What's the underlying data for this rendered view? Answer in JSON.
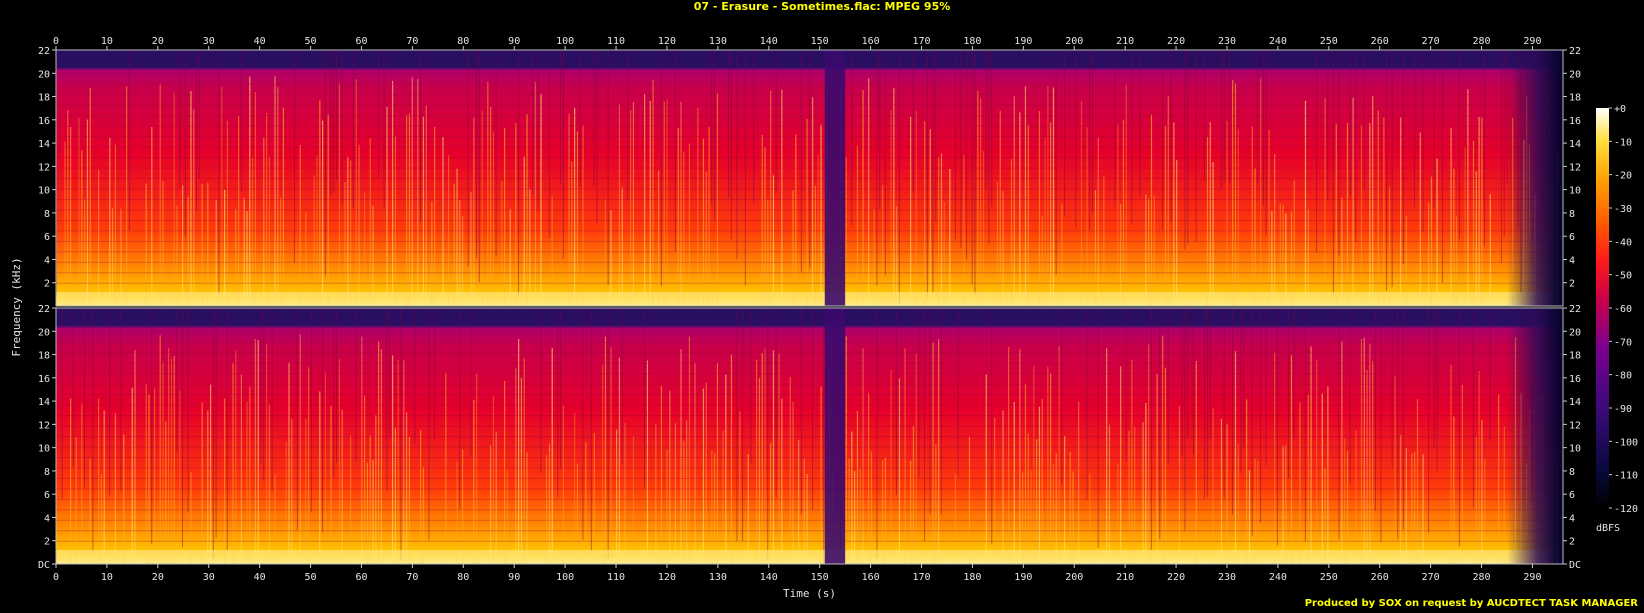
{
  "title": "07 - Erasure - Sometimes.flac: MPEG 95%",
  "footer": "Produced by SOX on request by AUCDTECT TASK MANAGER",
  "chart_data": {
    "type": "heatmap",
    "title": "07 - Erasure - Sometimes.flac: MPEG 95%",
    "xlabel": "Time (s)",
    "ylabel": "Frequency (kHz)",
    "colorbar_label": "dBFS",
    "xlim": [
      0,
      296
    ],
    "ylim": [
      0,
      22
    ],
    "x_ticks": [
      "0",
      "10",
      "20",
      "30",
      "40",
      "50",
      "60",
      "70",
      "80",
      "90",
      "100",
      "110",
      "120",
      "130",
      "140",
      "150",
      "160",
      "170",
      "180",
      "190",
      "200",
      "210",
      "220",
      "230",
      "240",
      "250",
      "260",
      "270",
      "280",
      "290"
    ],
    "y_ticks": [
      "DC",
      "2",
      "4",
      "6",
      "8",
      "10",
      "12",
      "14",
      "16",
      "18",
      "20",
      "22"
    ],
    "colorbar_ticks": [
      "+0",
      "-10",
      "-20",
      "-30",
      "-40",
      "-50",
      "-60",
      "-70",
      "-80",
      "-90",
      "-100",
      "-110",
      "-120"
    ],
    "channels": [
      {
        "name": "",
        "cutoff_khz": 20.5
      },
      {
        "name": "",
        "cutoff_khz": 20.5
      }
    ],
    "features": {
      "gap_time_s": [
        151,
        155
      ],
      "fade_out_start_s": 285,
      "end_time_s": 295
    },
    "grid": false
  }
}
